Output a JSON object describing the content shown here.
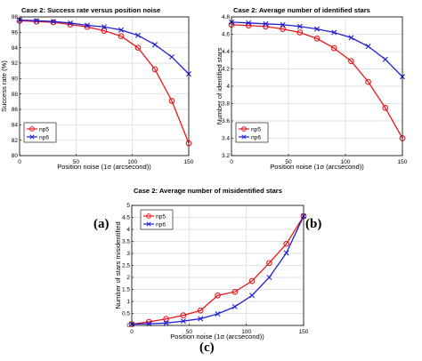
{
  "chart_data": [
    {
      "id": "a",
      "type": "line",
      "panel_label": "(a)",
      "title": "Case 2: Success rate versus position noise",
      "xlabel": "Position noise (1σ (arcsecond))",
      "ylabel": "Success rate (%)",
      "xlim": [
        0,
        150
      ],
      "ylim": [
        80,
        98
      ],
      "xticks": [
        0,
        50,
        100,
        150
      ],
      "yticks": [
        80,
        82,
        84,
        86,
        88,
        90,
        92,
        94,
        96,
        98
      ],
      "grid": true,
      "legend": "bottom-left",
      "x": [
        0,
        15,
        30,
        45,
        60,
        75,
        90,
        105,
        120,
        135,
        150
      ],
      "series": [
        {
          "name": "np5",
          "color": "#e8191d",
          "marker": "circle",
          "values": [
            97.5,
            97.4,
            97.3,
            97.0,
            96.7,
            96.2,
            95.5,
            94.0,
            91.2,
            87.1,
            81.6
          ]
        },
        {
          "name": "np6",
          "color": "#1f1fd6",
          "marker": "x",
          "values": [
            97.6,
            97.5,
            97.4,
            97.2,
            96.9,
            96.7,
            96.3,
            95.6,
            94.4,
            92.8,
            90.6
          ]
        }
      ]
    },
    {
      "id": "b",
      "type": "line",
      "panel_label": "(b)",
      "title": "Case 2: Average number of identified stars",
      "xlabel": "Position noise (1σ (arcsecond))",
      "ylabel": "Number of identified stars",
      "xlim": [
        0,
        150
      ],
      "ylim": [
        3.2,
        4.8
      ],
      "xticks": [
        0,
        50,
        100,
        150
      ],
      "yticks": [
        3.2,
        3.4,
        3.6,
        3.8,
        4.0,
        4.2,
        4.4,
        4.6,
        4.8
      ],
      "yticklabels": [
        "3.2",
        "3.4",
        "3.6",
        "3.8",
        "4",
        "4.2",
        "4.4",
        "4.6",
        "4.8"
      ],
      "grid": true,
      "legend": "bottom-left",
      "x": [
        0,
        15,
        30,
        45,
        60,
        75,
        90,
        105,
        120,
        135,
        150
      ],
      "series": [
        {
          "name": "np5",
          "color": "#e8191d",
          "marker": "circle",
          "values": [
            4.71,
            4.7,
            4.69,
            4.66,
            4.62,
            4.55,
            4.44,
            4.29,
            4.05,
            3.75,
            3.4
          ]
        },
        {
          "name": "np6",
          "color": "#1f1fd6",
          "marker": "x",
          "values": [
            4.74,
            4.73,
            4.72,
            4.71,
            4.69,
            4.66,
            4.62,
            4.56,
            4.46,
            4.31,
            4.11
          ]
        }
      ]
    },
    {
      "id": "c",
      "type": "line",
      "panel_label": "(c)",
      "title": "Case 2: Average number of misidentified stars",
      "xlabel": "Position noise (1σ (arcsecond))",
      "ylabel": "Number of stars misidentified",
      "xlim": [
        0,
        150
      ],
      "ylim": [
        0,
        5
      ],
      "xticks": [
        0,
        50,
        100,
        150
      ],
      "yticks": [
        0,
        0.5,
        1,
        1.5,
        2,
        2.5,
        3,
        3.5,
        4,
        4.5,
        5
      ],
      "grid": true,
      "legend": "top-left",
      "x": [
        0,
        15,
        30,
        45,
        60,
        75,
        90,
        105,
        120,
        135,
        150
      ],
      "series": [
        {
          "name": "np5",
          "color": "#e8191d",
          "marker": "circle",
          "values": [
            0.05,
            0.15,
            0.27,
            0.42,
            0.62,
            1.25,
            1.4,
            1.85,
            2.6,
            3.4,
            4.55
          ]
        },
        {
          "name": "np6",
          "color": "#1f1fd6",
          "marker": "x",
          "values": [
            0.05,
            0.07,
            0.1,
            0.18,
            0.28,
            0.48,
            0.78,
            1.25,
            2.0,
            3.02,
            4.55
          ]
        }
      ]
    }
  ]
}
